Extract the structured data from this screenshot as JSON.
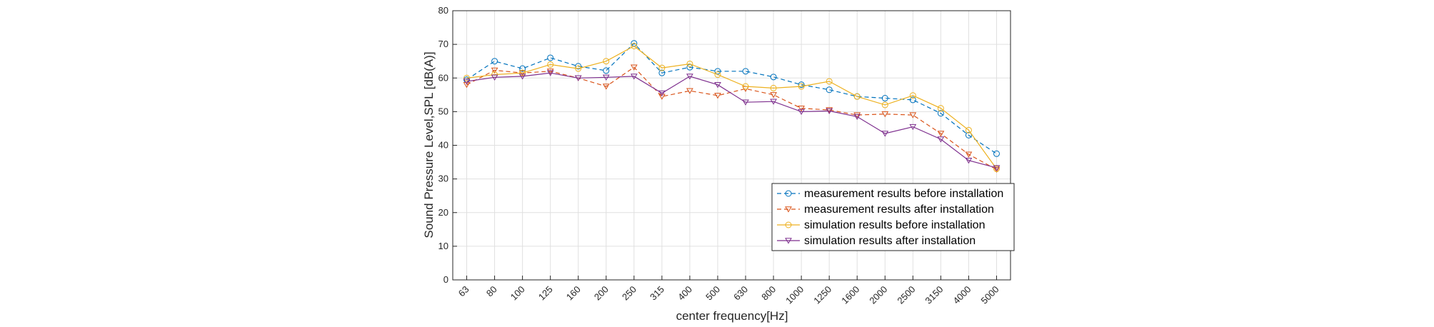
{
  "chart_data": {
    "type": "line",
    "title": "",
    "xlabel": "center frequency[Hz]",
    "ylabel": "Sound Pressure Level,SPL [dB(A)]",
    "ylim": [
      0,
      80
    ],
    "yticks": [
      0,
      10,
      20,
      30,
      40,
      50,
      60,
      70,
      80
    ],
    "grid": true,
    "legend_position": "bottom-right",
    "categories": [
      "63",
      "80",
      "100",
      "125",
      "160",
      "200",
      "250",
      "315",
      "400",
      "500",
      "630",
      "800",
      "1000",
      "1250",
      "1600",
      "2000",
      "2500",
      "3150",
      "4000",
      "5000"
    ],
    "series": [
      {
        "name": "measurement results before installation",
        "color": "#0072BD",
        "line_style": "dashed",
        "marker": "circle",
        "values": [
          59.5,
          65.0,
          62.8,
          66.0,
          63.5,
          62.2,
          70.3,
          61.5,
          63.2,
          62.0,
          62.0,
          60.3,
          58.0,
          56.5,
          54.5,
          54.0,
          53.5,
          49.5,
          43.0,
          37.5
        ]
      },
      {
        "name": "measurement results after installation",
        "color": "#D95319",
        "line_style": "dashed",
        "marker": "triangle-down",
        "values": [
          58.0,
          62.3,
          61.5,
          62.0,
          60.0,
          57.5,
          63.2,
          54.5,
          56.2,
          54.8,
          56.8,
          55.0,
          51.0,
          50.5,
          49.0,
          49.3,
          49.0,
          43.5,
          37.3,
          32.8
        ]
      },
      {
        "name": "simulation results before installation",
        "color": "#EDB120",
        "line_style": "solid",
        "marker": "circle",
        "values": [
          60.0,
          61.0,
          61.5,
          64.0,
          62.8,
          65.0,
          69.5,
          63.0,
          64.2,
          61.0,
          57.5,
          57.0,
          57.5,
          59.0,
          54.5,
          52.0,
          54.8,
          51.0,
          44.5,
          33.0
        ]
      },
      {
        "name": "simulation results after installation",
        "color": "#7E2F8E",
        "line_style": "solid",
        "marker": "triangle-down",
        "values": [
          59.0,
          60.2,
          60.5,
          61.5,
          60.0,
          60.2,
          60.5,
          55.5,
          60.5,
          58.0,
          52.8,
          53.0,
          50.0,
          50.2,
          48.5,
          43.5,
          45.5,
          41.8,
          35.5,
          33.3
        ]
      }
    ]
  }
}
